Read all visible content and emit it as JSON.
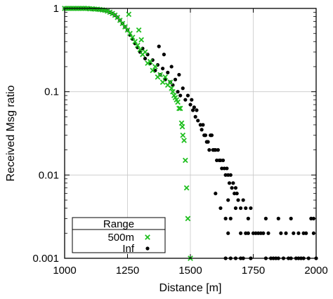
{
  "chart_data": {
    "type": "scatter",
    "title": "",
    "xlabel": "Distance [m]",
    "ylabel": "Received Msg ratio",
    "xlim": [
      1000,
      2000
    ],
    "ylim": [
      0.001,
      1
    ],
    "yscale": "log",
    "grid": true,
    "xticks": [
      1000,
      1250,
      1500,
      1750,
      2000
    ],
    "xtick_labels": [
      "1000",
      "1250",
      "1500",
      "1750",
      "2000"
    ],
    "yticks": [
      0.001,
      0.01,
      0.1,
      1
    ],
    "ytick_labels": [
      "0.001",
      "0.01",
      "0.1",
      "1"
    ],
    "legend": {
      "title": "Range",
      "position": "bottom-left"
    },
    "series": [
      {
        "name": "500m",
        "marker": "x",
        "color": "#1fbf1f",
        "points": [
          [
            1000,
            1
          ],
          [
            1010,
            1
          ],
          [
            1020,
            1
          ],
          [
            1030,
            1
          ],
          [
            1040,
            1
          ],
          [
            1050,
            1
          ],
          [
            1060,
            1
          ],
          [
            1070,
            1
          ],
          [
            1080,
            1
          ],
          [
            1090,
            1
          ],
          [
            1100,
            0.99
          ],
          [
            1110,
            0.99
          ],
          [
            1120,
            0.98
          ],
          [
            1130,
            0.98
          ],
          [
            1140,
            0.97
          ],
          [
            1150,
            0.96
          ],
          [
            1160,
            0.95
          ],
          [
            1170,
            0.93
          ],
          [
            1180,
            0.9
          ],
          [
            1190,
            0.87
          ],
          [
            1200,
            0.83
          ],
          [
            1210,
            0.78
          ],
          [
            1220,
            0.72
          ],
          [
            1230,
            0.66
          ],
          [
            1240,
            0.6
          ],
          [
            1250,
            0.55
          ],
          [
            1255,
            0.85
          ],
          [
            1260,
            0.5
          ],
          [
            1270,
            0.45
          ],
          [
            1280,
            0.4
          ],
          [
            1290,
            0.36
          ],
          [
            1295,
            0.55
          ],
          [
            1300,
            0.32
          ],
          [
            1305,
            0.42
          ],
          [
            1310,
            0.28
          ],
          [
            1320,
            0.3
          ],
          [
            1330,
            0.22
          ],
          [
            1340,
            0.23
          ],
          [
            1350,
            0.18
          ],
          [
            1360,
            0.2
          ],
          [
            1370,
            0.15
          ],
          [
            1380,
            0.16
          ],
          [
            1390,
            0.13
          ],
          [
            1400,
            0.15
          ],
          [
            1410,
            0.12
          ],
          [
            1420,
            0.13
          ],
          [
            1425,
            0.11
          ],
          [
            1430,
            0.1
          ],
          [
            1435,
            0.09
          ],
          [
            1440,
            0.085
          ],
          [
            1445,
            0.08
          ],
          [
            1450,
            0.075
          ],
          [
            1455,
            0.063
          ],
          [
            1460,
            0.063
          ],
          [
            1465,
            0.042
          ],
          [
            1468,
            0.038
          ],
          [
            1470,
            0.03
          ],
          [
            1475,
            0.026
          ],
          [
            1480,
            0.015
          ],
          [
            1485,
            0.007
          ],
          [
            1490,
            0.003
          ],
          [
            1500,
            0.001
          ]
        ]
      },
      {
        "name": "Inf",
        "marker": "dot",
        "color": "#000000",
        "points": [
          [
            1000,
            1
          ],
          [
            1010,
            1
          ],
          [
            1020,
            1
          ],
          [
            1030,
            1
          ],
          [
            1040,
            1
          ],
          [
            1050,
            1
          ],
          [
            1060,
            1
          ],
          [
            1070,
            1
          ],
          [
            1080,
            1
          ],
          [
            1090,
            1
          ],
          [
            1100,
            0.99
          ],
          [
            1110,
            0.99
          ],
          [
            1120,
            0.98
          ],
          [
            1130,
            0.98
          ],
          [
            1140,
            0.97
          ],
          [
            1150,
            0.96
          ],
          [
            1160,
            0.95
          ],
          [
            1170,
            0.93
          ],
          [
            1180,
            0.9
          ],
          [
            1190,
            0.87
          ],
          [
            1200,
            0.83
          ],
          [
            1210,
            0.78
          ],
          [
            1220,
            0.72
          ],
          [
            1230,
            0.66
          ],
          [
            1240,
            0.6
          ],
          [
            1250,
            0.55
          ],
          [
            1260,
            0.48
          ],
          [
            1270,
            0.43
          ],
          [
            1280,
            0.38
          ],
          [
            1290,
            0.34
          ],
          [
            1300,
            0.3
          ],
          [
            1310,
            0.33
          ],
          [
            1320,
            0.25
          ],
          [
            1330,
            0.28
          ],
          [
            1340,
            0.22
          ],
          [
            1350,
            0.24
          ],
          [
            1360,
            0.18
          ],
          [
            1370,
            0.21
          ],
          [
            1375,
            0.35
          ],
          [
            1380,
            0.16
          ],
          [
            1390,
            0.19
          ],
          [
            1395,
            0.28
          ],
          [
            1400,
            0.14
          ],
          [
            1410,
            0.17
          ],
          [
            1420,
            0.13
          ],
          [
            1425,
            0.2
          ],
          [
            1430,
            0.12
          ],
          [
            1440,
            0.14
          ],
          [
            1450,
            0.1
          ],
          [
            1455,
            0.16
          ],
          [
            1460,
            0.09
          ],
          [
            1470,
            0.11
          ],
          [
            1480,
            0.08
          ],
          [
            1490,
            0.09
          ],
          [
            1500,
            0.07
          ],
          [
            1505,
            0.08
          ],
          [
            1510,
            0.06
          ],
          [
            1515,
            0.065
          ],
          [
            1520,
            0.05
          ],
          [
            1525,
            0.06
          ],
          [
            1530,
            0.045
          ],
          [
            1540,
            0.04
          ],
          [
            1545,
            0.035
          ],
          [
            1550,
            0.04
          ],
          [
            1555,
            0.03
          ],
          [
            1560,
            0.03
          ],
          [
            1565,
            0.025
          ],
          [
            1570,
            0.025
          ],
          [
            1575,
            0.02
          ],
          [
            1580,
            0.03
          ],
          [
            1585,
            0.03
          ],
          [
            1590,
            0.02
          ],
          [
            1595,
            0.02
          ],
          [
            1600,
            0.02
          ],
          [
            1605,
            0.015
          ],
          [
            1610,
            0.02
          ],
          [
            1615,
            0.015
          ],
          [
            1620,
            0.015
          ],
          [
            1625,
            0.012
          ],
          [
            1630,
            0.015
          ],
          [
            1635,
            0.012
          ],
          [
            1640,
            0.01
          ],
          [
            1645,
            0.012
          ],
          [
            1650,
            0.01
          ],
          [
            1655,
            0.008
          ],
          [
            1660,
            0.01
          ],
          [
            1665,
            0.007
          ],
          [
            1670,
            0.008
          ],
          [
            1675,
            0.006
          ],
          [
            1680,
            0.007
          ],
          [
            1685,
            0.006
          ],
          [
            1690,
            0.005
          ],
          [
            1700,
            0.004
          ],
          [
            1710,
            0.005
          ],
          [
            1720,
            0.004
          ],
          [
            1730,
            0.003
          ],
          [
            1740,
            0.004
          ],
          [
            1600,
            0.006
          ],
          [
            1620,
            0.004
          ],
          [
            1640,
            0.003
          ],
          [
            1650,
            0.005
          ],
          [
            1660,
            0.003
          ],
          [
            1680,
            0.004
          ],
          [
            1700,
            0.002
          ],
          [
            1650,
            0.002
          ],
          [
            1700,
            0.001
          ],
          [
            1710,
            0.001
          ],
          [
            1720,
            0.002
          ],
          [
            1730,
            0.002
          ],
          [
            1740,
            0.001
          ],
          [
            1750,
            0.002
          ],
          [
            1760,
            0.002
          ],
          [
            1770,
            0.002
          ],
          [
            1780,
            0.002
          ],
          [
            1790,
            0.002
          ],
          [
            1800,
            0.001
          ],
          [
            1810,
            0.002
          ],
          [
            1820,
            0.001
          ],
          [
            1830,
            0.001
          ],
          [
            1840,
            0.001
          ],
          [
            1850,
            0.001
          ],
          [
            1860,
            0.002
          ],
          [
            1870,
            0.001
          ],
          [
            1880,
            0.002
          ],
          [
            1890,
            0.001
          ],
          [
            1900,
            0.001
          ],
          [
            1910,
            0.002
          ],
          [
            1920,
            0.001
          ],
          [
            1930,
            0.001
          ],
          [
            1940,
            0.001
          ],
          [
            1950,
            0.001
          ],
          [
            1960,
            0.002
          ],
          [
            1970,
            0.001
          ],
          [
            1980,
            0.003
          ],
          [
            1990,
            0.002
          ],
          [
            2000,
            0.001
          ],
          [
            1640,
            0.001
          ],
          [
            1660,
            0.001
          ],
          [
            1680,
            0.001
          ],
          [
            1800,
            0.003
          ],
          [
            1850,
            0.003
          ],
          [
            1900,
            0.003
          ],
          [
            1990,
            0.003
          ],
          [
            1930,
            0.002
          ],
          [
            1950,
            0.002
          ]
        ]
      }
    ]
  }
}
